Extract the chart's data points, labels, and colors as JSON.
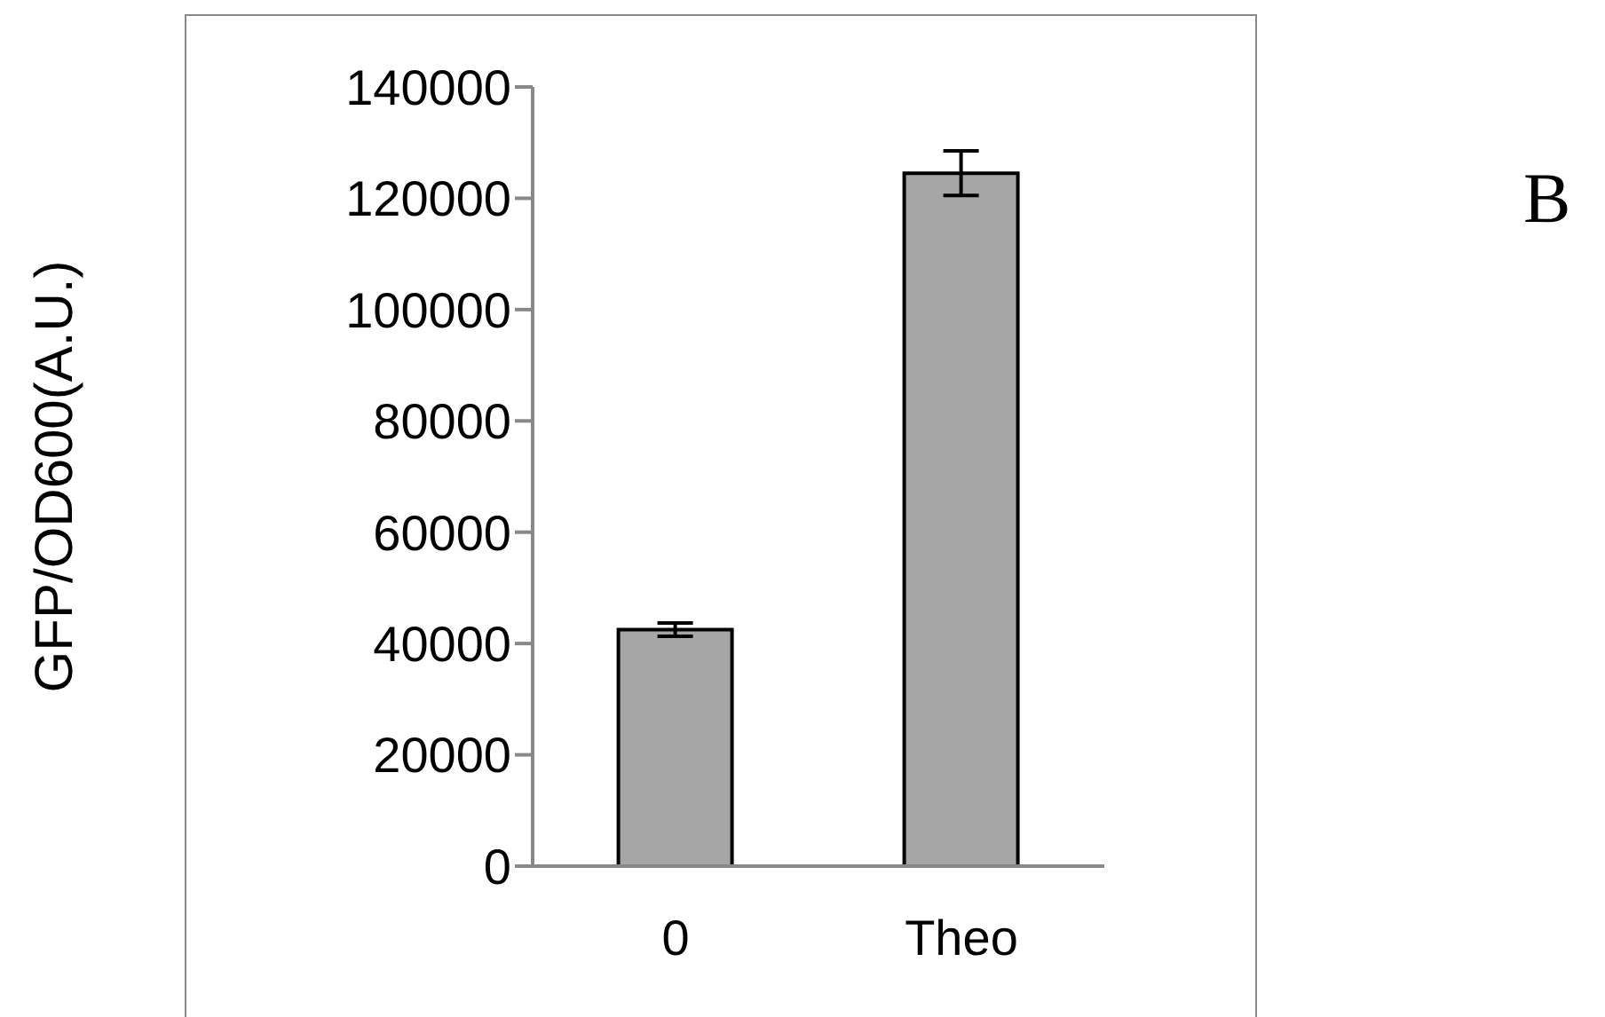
{
  "chart_data": {
    "type": "bar",
    "ylabel": "GFP/OD600(A.U.)",
    "categories": [
      "0",
      "Theo"
    ],
    "values": [
      42500,
      124500
    ],
    "errors": [
      1200,
      4000
    ],
    "color": "#a6a6a6",
    "ylim": [
      0,
      140000
    ],
    "yticks": [
      0,
      20000,
      40000,
      60000,
      80000,
      100000,
      120000,
      140000
    ],
    "annotations": [
      "B"
    ]
  }
}
